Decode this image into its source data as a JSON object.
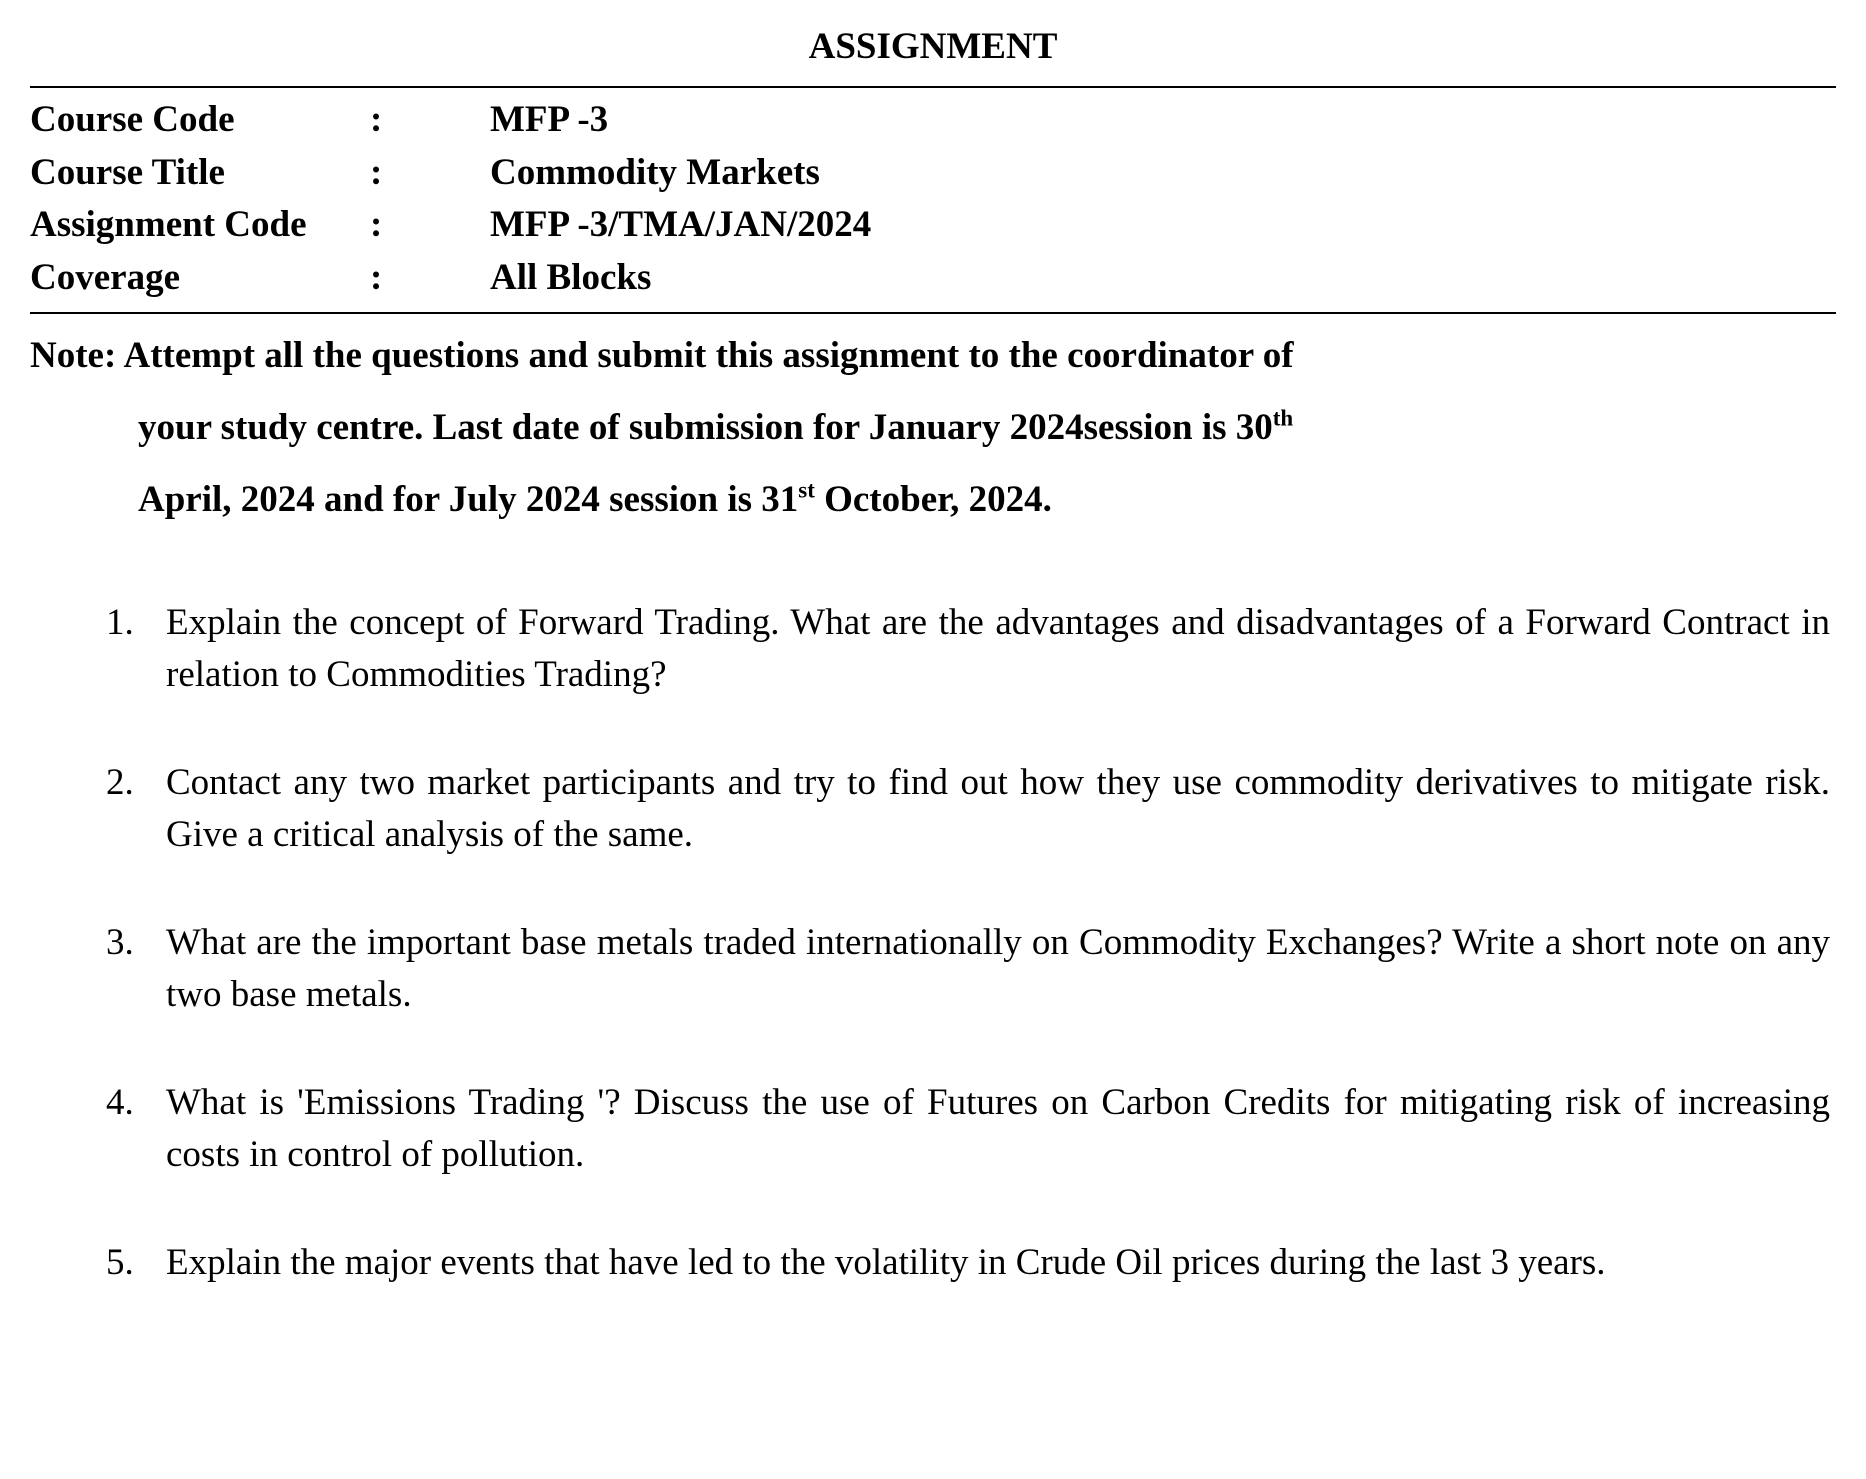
{
  "title": "ASSIGNMENT",
  "info": {
    "course_code": {
      "label": "Course Code",
      "value": "MFP -3"
    },
    "course_title": {
      "label": "Course Title",
      "value": "Commodity Markets"
    },
    "assignment_code": {
      "label": "Assignment Code",
      "value": "MFP -3/TMA/JAN/2024"
    },
    "coverage": {
      "label": "Coverage",
      "value": "All Blocks"
    }
  },
  "note": {
    "label": "Note:",
    "line1_after_label": "Attempt all the questions and submit this assignment to the coordinator of",
    "line2_pre": "your study centre. Last date of submission for January 2024session is 30",
    "line2_sup": "th",
    "line3_pre": "April, 2024 and for July 2024 session is 31",
    "line3_sup": "st",
    "line3_post": " October, 2024."
  },
  "questions": [
    {
      "num": "1.",
      "text": "Explain the concept of Forward Trading. What are the advantages and disadvantages of a Forward Contract in relation to Commodities Trading?"
    },
    {
      "num": "2.",
      "text": "Contact any two market participants and try to find out how they use commodity derivatives to mitigate risk. Give a critical analysis of the same."
    },
    {
      "num": "3.",
      "text": "What are the important base metals traded internationally on Commodity Exchanges? Write a short note on any two base metals."
    },
    {
      "num": "4.",
      "text": "What is 'Emissions Trading '? Discuss the use of Futures on Carbon Credits for mitigating risk of increasing costs in control of pollution."
    },
    {
      "num": "5.",
      "text": "Explain the major events that have led to the volatility in Crude Oil prices during the last 3 years."
    }
  ]
}
